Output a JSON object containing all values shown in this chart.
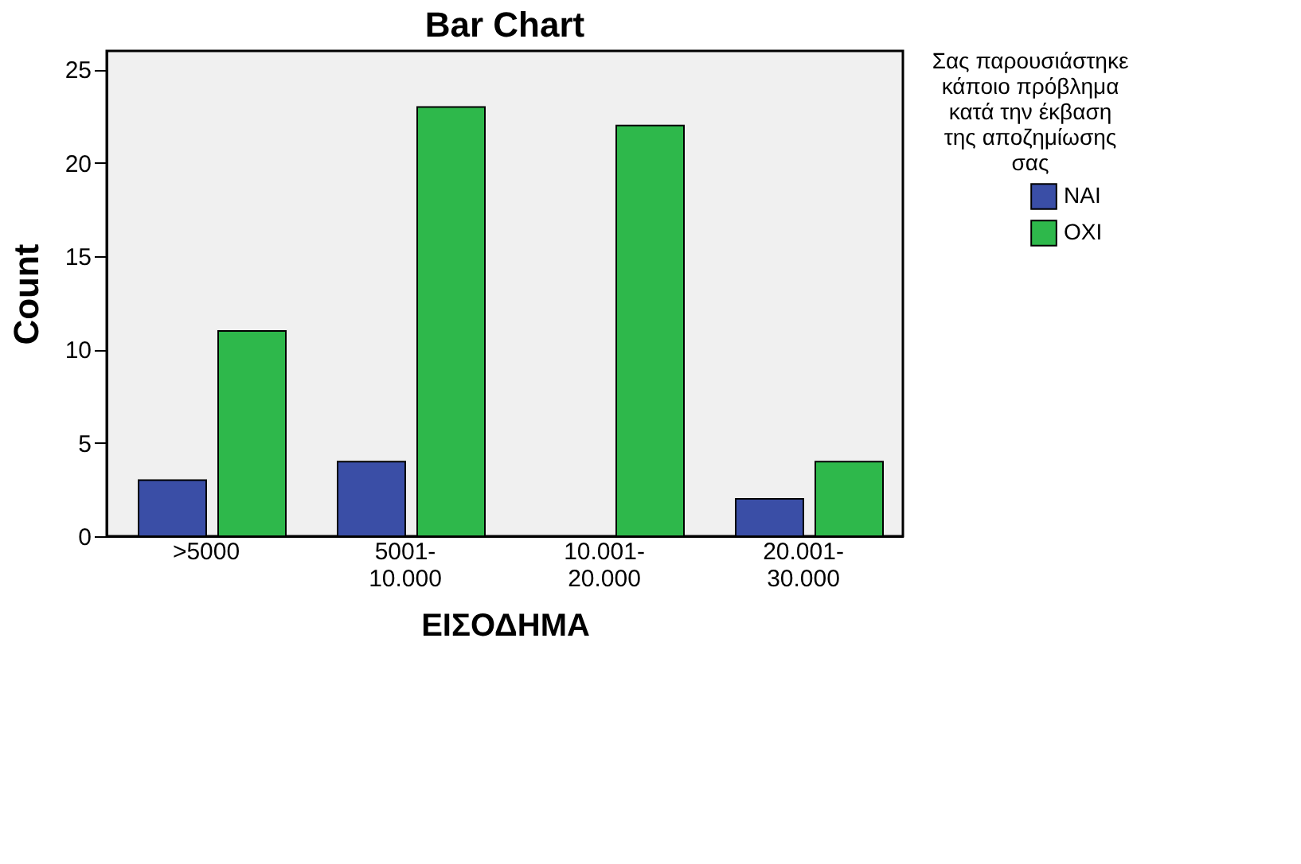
{
  "chart_data": {
    "type": "bar",
    "title": "Bar Chart",
    "xlabel": "ΕΙΣΟΔΗΜΑ",
    "ylabel": "Count",
    "legend_title": "Σας παρουσιάστηκε κάποιο πρόβλημα κατά την έκβαση της αποζημίωσης σας",
    "categories": [
      ">5000",
      "5001-10.000",
      "10.001-20.000",
      "20.001-30.000"
    ],
    "series": [
      {
        "name": "ΝΑΙ",
        "color": "#3a4ea6",
        "values": [
          3,
          4,
          null,
          2
        ]
      },
      {
        "name": "ΟΧΙ",
        "color": "#2eb84b",
        "values": [
          11,
          23,
          22,
          4
        ]
      }
    ],
    "ylim": [
      0,
      26
    ],
    "yticks": [
      0,
      5,
      10,
      15,
      20,
      25
    ],
    "grid": false,
    "legend": "top right"
  }
}
